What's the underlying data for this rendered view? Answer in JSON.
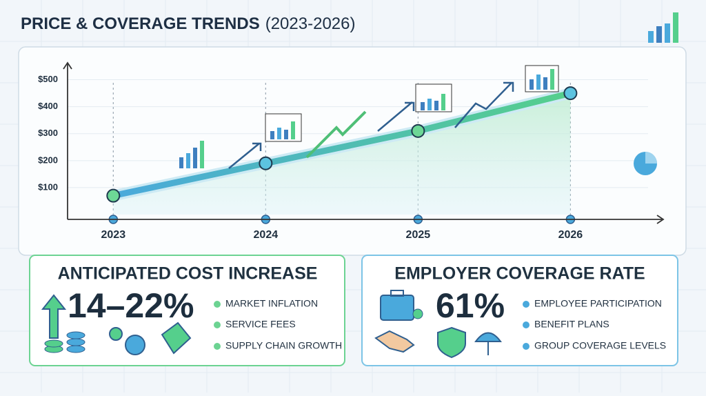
{
  "chart_data": {
    "type": "line",
    "title": "PRICE & COVERAGE TRENDS",
    "subtitle": "(2023-2026)",
    "x": [
      2023,
      2024,
      2025,
      2026
    ],
    "xlim": [
      2022.7,
      2026.6
    ],
    "xticks": [
      2023,
      2024,
      2025,
      2026
    ],
    "series": [
      {
        "name": "Price",
        "color": "#4fb8c8",
        "values": [
          70,
          190,
          310,
          450
        ]
      }
    ],
    "ylim": [
      0,
      550
    ],
    "yticks": [
      {
        "value": 100,
        "label": "$100"
      },
      {
        "value": 200,
        "label": "$200"
      },
      {
        "value": 300,
        "label": "$300"
      },
      {
        "value": 400,
        "label": "$400"
      },
      {
        "value": 500,
        "label": "$500"
      }
    ],
    "grid": true
  },
  "cost_card": {
    "title": "ANTICIPATED COST INCREASE",
    "figure": "14–22%",
    "items": [
      "MARKET INFLATION",
      "SERVICE FEES",
      "SUPPLY CHAIN GROWTH"
    ]
  },
  "coverage_card": {
    "title": "EMPLOYER COVERAGE RATE",
    "figure": "61%",
    "items": [
      "EMPLOYEE PARTICIPATION",
      "BENEFIT PLANS",
      "GROUP COVERAGE LEVELS"
    ]
  }
}
